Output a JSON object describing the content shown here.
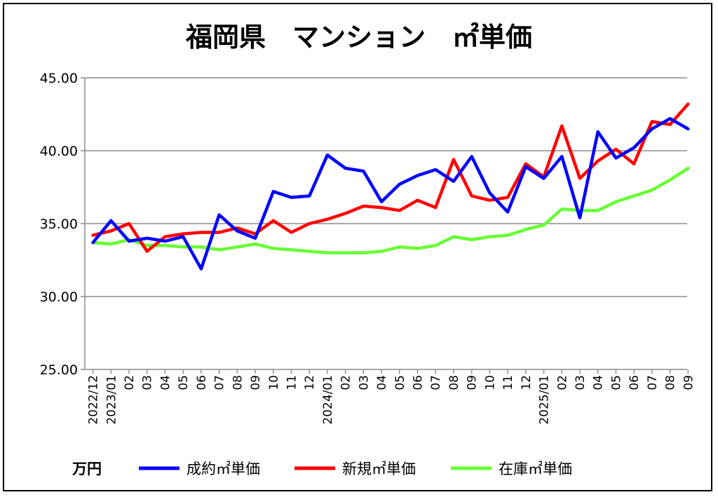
{
  "chart_data": {
    "type": "line",
    "title": "福岡県　マンション　㎡単価",
    "unit_label": "万円",
    "ylim": [
      25,
      45
    ],
    "yticks": [
      "25.00",
      "30.00",
      "35.00",
      "40.00",
      "45.00"
    ],
    "grid": true,
    "legend_position": "bottom",
    "categories": [
      "2022/12",
      "2023/01",
      "02",
      "03",
      "04",
      "05",
      "06",
      "07",
      "08",
      "09",
      "10",
      "11",
      "12",
      "2024/01",
      "02",
      "03",
      "04",
      "05",
      "06",
      "07",
      "08",
      "09",
      "10",
      "11",
      "12",
      "2025/01",
      "02",
      "03",
      "04",
      "05",
      "06",
      "07",
      "08",
      "09"
    ],
    "series": [
      {
        "name": "成約㎡単価",
        "color": "#0000ff",
        "values": [
          33.7,
          35.2,
          33.8,
          34.0,
          33.8,
          34.1,
          31.9,
          35.6,
          34.5,
          34.0,
          37.2,
          36.8,
          36.9,
          39.7,
          38.8,
          38.6,
          36.5,
          37.7,
          38.3,
          38.7,
          37.9,
          39.6,
          37.1,
          35.8,
          38.9,
          38.1,
          39.6,
          35.4,
          41.3,
          39.5,
          40.2,
          41.5,
          42.2,
          41.5
        ]
      },
      {
        "name": "新規㎡単価",
        "color": "#ff0000",
        "values": [
          34.2,
          34.5,
          35.0,
          33.1,
          34.1,
          34.3,
          34.4,
          34.4,
          34.7,
          34.3,
          35.2,
          34.4,
          35.0,
          35.3,
          35.7,
          36.2,
          36.1,
          35.9,
          36.6,
          36.1,
          39.4,
          36.9,
          36.6,
          36.8,
          39.1,
          38.2,
          41.7,
          38.1,
          39.3,
          40.1,
          39.1,
          42.0,
          41.8,
          43.2
        ]
      },
      {
        "name": "在庫㎡単価",
        "color": "#66ff33",
        "values": [
          33.7,
          33.6,
          33.9,
          33.5,
          33.5,
          33.4,
          33.4,
          33.2,
          33.4,
          33.6,
          33.3,
          33.2,
          33.1,
          33.0,
          33.0,
          33.0,
          33.1,
          33.4,
          33.3,
          33.5,
          34.1,
          33.9,
          34.1,
          34.2,
          34.6,
          34.9,
          36.0,
          35.9,
          35.9,
          36.5,
          36.9,
          37.3,
          38.0,
          38.8
        ]
      }
    ]
  }
}
